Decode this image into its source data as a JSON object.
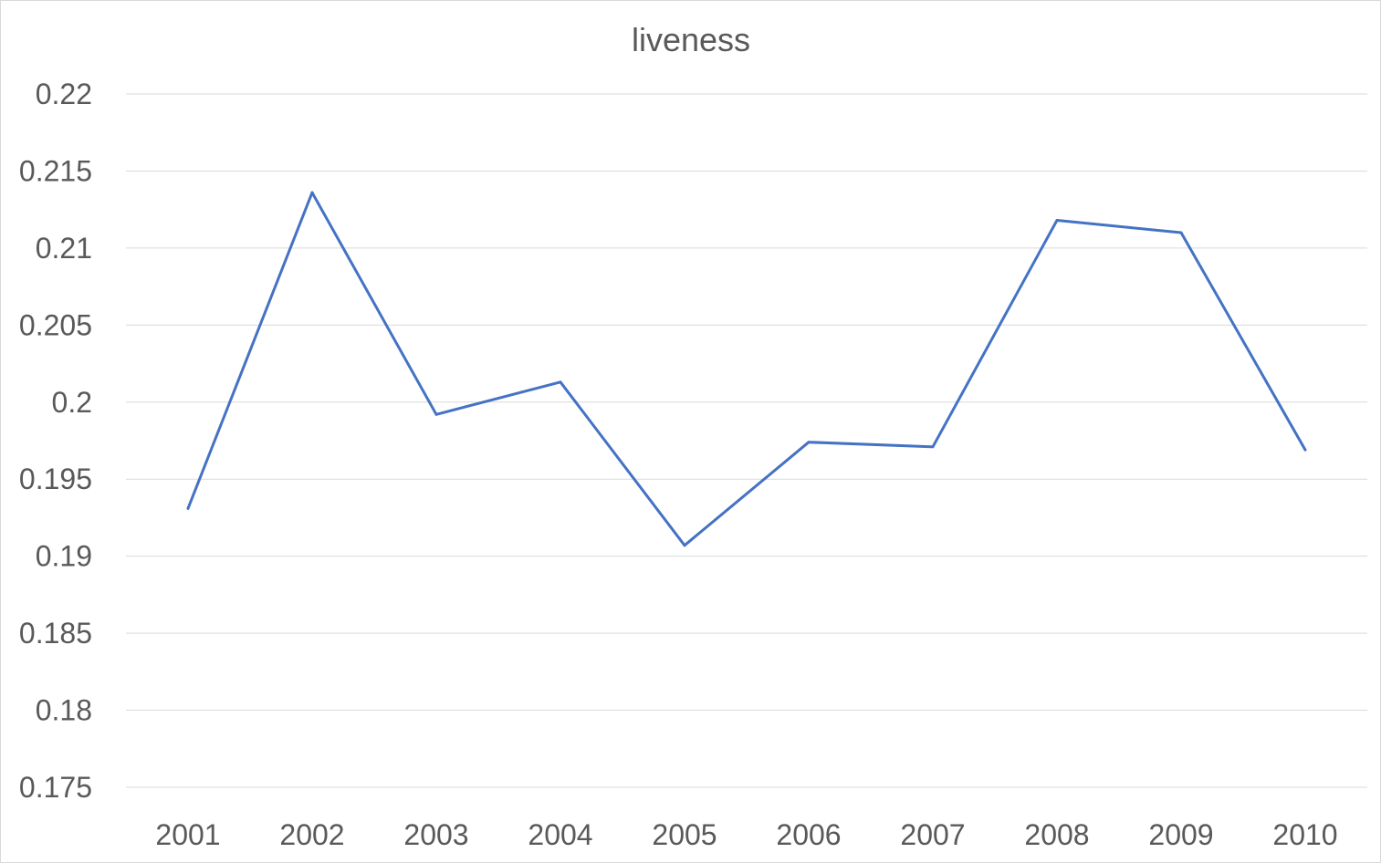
{
  "chart_data": {
    "type": "line",
    "title": "liveness",
    "xlabel": "",
    "ylabel": "",
    "categories": [
      "2001",
      "2002",
      "2003",
      "2004",
      "2005",
      "2006",
      "2007",
      "2008",
      "2009",
      "2010"
    ],
    "series": [
      {
        "values": [
          0.1931,
          0.2136,
          0.1992,
          0.2013,
          0.1907,
          0.1974,
          0.1971,
          0.2118,
          0.211,
          0.1969
        ],
        "color": "#4472c4"
      }
    ],
    "ylim": [
      0.175,
      0.22
    ],
    "yticks": [
      "0.175",
      "0.18",
      "0.185",
      "0.19",
      "0.195",
      "0.2",
      "0.205",
      "0.21",
      "0.215",
      "0.22"
    ],
    "grid": true,
    "legend": "none"
  }
}
